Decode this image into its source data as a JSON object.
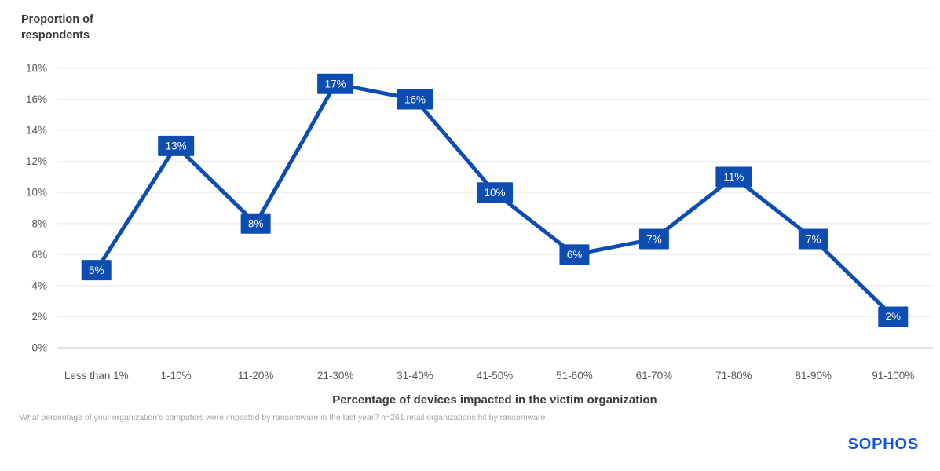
{
  "page": {
    "footnote": "What percentage of your organization's computers were impacted by ransomware in the last year? n=261 retail organizations hit by ransomware",
    "logo_text": "SOPHOS",
    "logo_color": "#0b55e6"
  },
  "chart_data": {
    "type": "line",
    "categories": [
      "Less than 1%",
      "1-10%",
      "11-20%",
      "21-30%",
      "31-40%",
      "41-50%",
      "51-60%",
      "61-70%",
      "71-80%",
      "81-90%",
      "91-100%"
    ],
    "values": [
      5,
      13,
      8,
      17,
      16,
      10,
      6,
      7,
      11,
      7,
      2
    ],
    "point_labels": [
      "5%",
      "13%",
      "8%",
      "17%",
      "16%",
      "10%",
      "6%",
      "7%",
      "11%",
      "7%",
      "2%"
    ],
    "title": "",
    "ylabel": "Proportion of\nrespondents",
    "xlabel": "Percentage of devices impacted in the victim organization",
    "ylim": [
      0,
      18
    ],
    "ytick_step": 2,
    "ytick_suffix": "%",
    "grid": true,
    "legend": false,
    "data_labels": "on-point boxes",
    "colors": {
      "line": "#0d4db2",
      "point_label_bg": "#0d4db2",
      "point_label_text": "#ffffff",
      "gridline": "#f1efed",
      "zero_line": "#dedbd9",
      "tick_text": "#5b5958",
      "axis_title_text": "#3a393b",
      "footnote_text": "#a6a3a0"
    }
  }
}
